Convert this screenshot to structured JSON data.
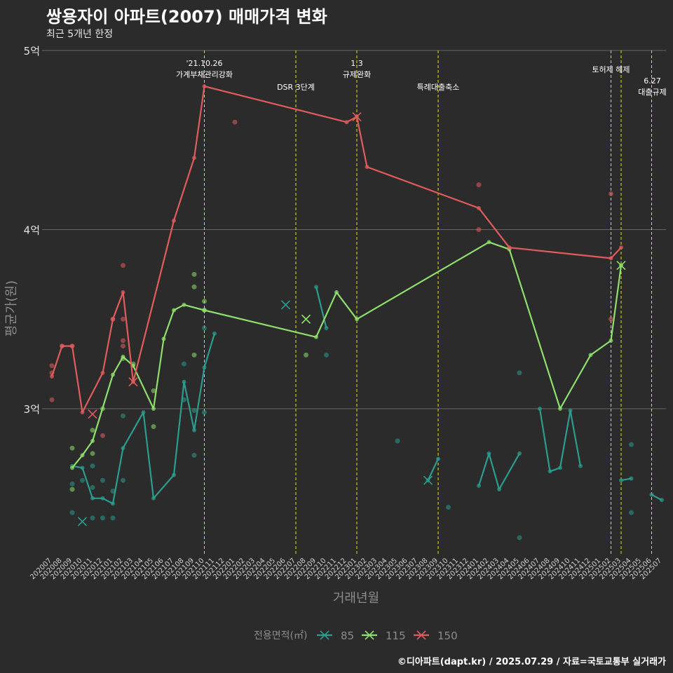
{
  "title": "쌍용자이 아파트(2007) 매매가격 변화",
  "subtitle": "최근 5개년 한정",
  "caption": "©디아파트(dapt.kr) / 2025.07.29 / 자료=국토교통부 실거래가",
  "colors": {
    "background": "#2b2b2b",
    "grid": "#666666",
    "vline": "#e6e600"
  },
  "chart_data": {
    "type": "line",
    "xlabel": "거래년월",
    "ylabel": "평균가(원)",
    "ylim": [
      2.2,
      5.0
    ],
    "y_ticks": [
      {
        "value": 3,
        "label": "3억"
      },
      {
        "value": 4,
        "label": "4억"
      },
      {
        "value": 5,
        "label": "5억"
      }
    ],
    "categories": [
      "202007",
      "202008",
      "202009",
      "202010",
      "202011",
      "202012",
      "202101",
      "202102",
      "202103",
      "202104",
      "202105",
      "202106",
      "202107",
      "202108",
      "202109",
      "202110",
      "202111",
      "202112",
      "202201",
      "202202",
      "202203",
      "202204",
      "202205",
      "202206",
      "202207",
      "202208",
      "202209",
      "202210",
      "202211",
      "202212",
      "202301",
      "202302",
      "202303",
      "202304",
      "202305",
      "202306",
      "202307",
      "202308",
      "202309",
      "202310",
      "202311",
      "202312",
      "202401",
      "202402",
      "202403",
      "202404",
      "202405",
      "202406",
      "202407",
      "202408",
      "202409",
      "202410",
      "202411",
      "202412",
      "202501",
      "202502",
      "202503",
      "202504",
      "202505",
      "202506",
      "202507"
    ],
    "legend": {
      "title": "전용면적(㎡)",
      "position": "bottom"
    },
    "series": [
      {
        "name": "85",
        "color": "#2a9d8f",
        "segments": [
          [
            [
              "202009",
              2.68
            ],
            [
              "202010",
              2.67
            ],
            [
              "202011",
              2.5
            ],
            [
              "202012",
              2.5
            ],
            [
              "202101",
              2.47
            ],
            [
              "202102",
              2.78
            ],
            [
              "202104",
              2.98
            ],
            [
              "202105",
              2.5
            ],
            [
              "202107",
              2.63
            ],
            [
              "202108",
              3.15
            ],
            [
              "202109",
              2.88
            ],
            [
              "202110",
              3.23
            ],
            [
              "202111",
              3.42
            ]
          ],
          [
            [
              "202209",
              3.68
            ],
            [
              "202210",
              3.45
            ]
          ],
          [
            [
              "202308",
              2.6
            ],
            [
              "202309",
              2.72
            ]
          ],
          [
            [
              "202401",
              2.57
            ],
            [
              "202402",
              2.75
            ],
            [
              "202403",
              2.55
            ],
            [
              "202405",
              2.75
            ]
          ],
          [
            [
              "202407",
              3.0
            ],
            [
              "202408",
              2.65
            ],
            [
              "202409",
              2.67
            ],
            [
              "202410",
              2.99
            ],
            [
              "202411",
              2.68
            ]
          ],
          [
            [
              "202503",
              2.6
            ],
            [
              "202504",
              2.61
            ]
          ],
          [
            [
              "202506",
              2.52
            ],
            [
              "202507",
              2.49
            ]
          ]
        ],
        "points": [
          [
            "202009",
            2.58
          ],
          [
            "202009",
            2.42
          ],
          [
            "202010",
            2.6
          ],
          [
            "202011",
            2.39
          ],
          [
            "202011",
            2.68
          ],
          [
            "202011",
            2.56
          ],
          [
            "202012",
            2.39
          ],
          [
            "202012",
            2.6
          ],
          [
            "202101",
            2.54
          ],
          [
            "202101",
            2.39
          ],
          [
            "202102",
            2.6
          ],
          [
            "202102",
            2.96
          ],
          [
            "202108",
            3.25
          ],
          [
            "202108",
            3.05
          ],
          [
            "202109",
            2.74
          ],
          [
            "202109",
            2.99
          ],
          [
            "202110",
            3.45
          ],
          [
            "202110",
            2.98
          ],
          [
            "202210",
            3.3
          ],
          [
            "202305",
            2.82
          ],
          [
            "202310",
            2.45
          ],
          [
            "202405",
            3.2
          ],
          [
            "202405",
            2.28
          ],
          [
            "202504",
            2.8
          ],
          [
            "202504",
            2.42
          ]
        ],
        "crosses": [
          [
            "202010",
            2.37
          ],
          [
            "202206",
            3.58
          ],
          [
            "202308",
            2.6
          ]
        ]
      },
      {
        "name": "115",
        "color": "#8ee06b",
        "segments": [
          [
            [
              "202009",
              2.67
            ],
            [
              "202010",
              2.74
            ],
            [
              "202011",
              2.82
            ],
            [
              "202101",
              3.19
            ],
            [
              "202102",
              3.29
            ],
            [
              "202103",
              3.24
            ],
            [
              "202105",
              3.0
            ],
            [
              "202106",
              3.39
            ],
            [
              "202107",
              3.55
            ],
            [
              "202108",
              3.58
            ],
            [
              "202110",
              3.55
            ],
            [
              "202209",
              3.4
            ],
            [
              "202211",
              3.65
            ],
            [
              "202301",
              3.5
            ],
            [
              "202402",
              3.93
            ],
            [
              "202404",
              3.89
            ],
            [
              "202409",
              3.0
            ],
            [
              "202412",
              3.3
            ],
            [
              "202502",
              3.38
            ],
            [
              "202503",
              3.8
            ]
          ]
        ],
        "points": [
          [
            "202009",
            2.78
          ],
          [
            "202009",
            2.55
          ],
          [
            "202011",
            2.75
          ],
          [
            "202011",
            2.88
          ],
          [
            "202012",
            3.0
          ],
          [
            "202102",
            3.28
          ],
          [
            "202103",
            3.25
          ],
          [
            "202105",
            3.1
          ],
          [
            "202105",
            2.9
          ],
          [
            "202109",
            3.75
          ],
          [
            "202109",
            3.68
          ],
          [
            "202109",
            3.3
          ],
          [
            "202110",
            3.6
          ],
          [
            "202110",
            3.55
          ],
          [
            "202208",
            3.3
          ]
        ],
        "crosses": [
          [
            "202208",
            3.5
          ],
          [
            "202503",
            3.8
          ]
        ]
      },
      {
        "name": "150",
        "color": "#e05c5c",
        "segments": [
          [
            [
              "202007",
              3.18
            ],
            [
              "202008",
              3.35
            ],
            [
              "202009",
              3.35
            ],
            [
              "202010",
              2.98
            ],
            [
              "202012",
              3.2
            ],
            [
              "202101",
              3.5
            ],
            [
              "202102",
              3.65
            ],
            [
              "202103",
              3.15
            ],
            [
              "202107",
              4.05
            ],
            [
              "202109",
              4.4
            ],
            [
              "202110",
              4.8
            ],
            [
              "202212",
              4.6
            ],
            [
              "202301",
              4.63
            ],
            [
              "202302",
              4.35
            ],
            [
              "202401",
              4.12
            ],
            [
              "202404",
              3.9
            ],
            [
              "202502",
              3.84
            ],
            [
              "202503",
              3.9
            ]
          ]
        ],
        "points": [
          [
            "202007",
            3.24
          ],
          [
            "202007",
            3.2
          ],
          [
            "202007",
            3.05
          ],
          [
            "202008",
            3.35
          ],
          [
            "202009",
            3.35
          ],
          [
            "202012",
            2.85
          ],
          [
            "202101",
            3.5
          ],
          [
            "202102",
            3.8
          ],
          [
            "202102",
            3.5
          ],
          [
            "202102",
            3.38
          ],
          [
            "202102",
            3.35
          ],
          [
            "202201",
            4.6
          ],
          [
            "202401",
            4.25
          ],
          [
            "202401",
            4.0
          ],
          [
            "202502",
            4.2
          ],
          [
            "202502",
            3.5
          ]
        ],
        "crosses": [
          [
            "202011",
            2.97
          ],
          [
            "202103",
            3.15
          ],
          [
            "202301",
            4.63
          ]
        ]
      }
    ],
    "annotations": [
      {
        "x": "202110",
        "lines": [
          "'21.10.26",
          "가계부채관리강화"
        ]
      },
      {
        "x": "202207",
        "lines": [
          "DSR 3단계"
        ]
      },
      {
        "x": "202301",
        "lines": [
          "1.3",
          "규제완화"
        ]
      },
      {
        "x": "202309",
        "lines": [
          "특례대출축소"
        ]
      },
      {
        "x": "202502",
        "lines": [
          "토허제 해제"
        ]
      },
      {
        "x": "202503",
        "lines": []
      },
      {
        "x": "202506",
        "lines": [
          "6.27",
          "대출규제"
        ]
      }
    ]
  }
}
